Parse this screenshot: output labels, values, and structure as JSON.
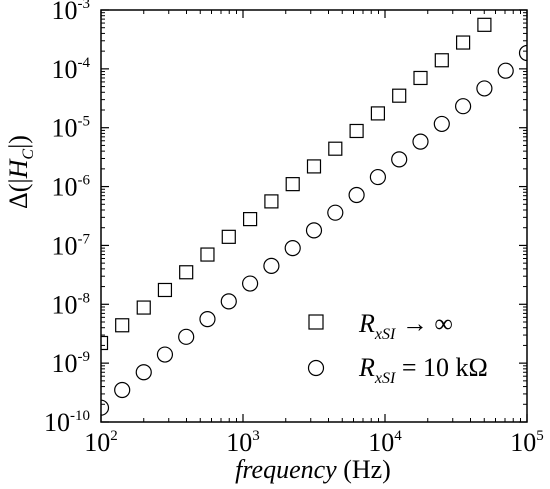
{
  "chart_data": {
    "type": "scatter",
    "title": "",
    "xscale": "log",
    "yscale": "log",
    "xlim": [
      100,
      100000
    ],
    "ylim": [
      1e-10,
      0.001
    ],
    "grid": false,
    "legend_position": "bottom-right",
    "xlabel": {
      "italic": "frequency",
      "unit": "(Hz)"
    },
    "ylabel": {
      "prefix": "Δ(|",
      "symbol": "H",
      "subscript": "C",
      "suffix": "|)"
    },
    "x_ticks": [
      {
        "value": 100,
        "base": "10",
        "exp": "2"
      },
      {
        "value": 1000,
        "base": "10",
        "exp": "3"
      },
      {
        "value": 10000,
        "base": "10",
        "exp": "4"
      },
      {
        "value": 100000,
        "base": "10",
        "exp": "5"
      }
    ],
    "y_ticks": [
      {
        "value": 1e-10,
        "base": "10",
        "exp": "-10"
      },
      {
        "value": 1e-09,
        "base": "10",
        "exp": "-9"
      },
      {
        "value": 1e-08,
        "base": "10",
        "exp": "-8"
      },
      {
        "value": 1e-07,
        "base": "10",
        "exp": "-7"
      },
      {
        "value": 1e-06,
        "base": "10",
        "exp": "-6"
      },
      {
        "value": 1e-05,
        "base": "10",
        "exp": "-5"
      },
      {
        "value": 0.0001,
        "base": "10",
        "exp": "-4"
      },
      {
        "value": 0.001,
        "base": "10",
        "exp": "-3"
      }
    ],
    "series": [
      {
        "name": "R_xSI → ∞",
        "label": {
          "symbol": "R",
          "subscript": "xSI",
          "rest": "→ ∞"
        },
        "marker": "square",
        "x": [
          100,
          141,
          200,
          282,
          398,
          562,
          794,
          1122,
          1585,
          2239,
          3162,
          4467,
          6310,
          8913,
          12589,
          17783,
          25119,
          35481,
          50119
        ],
        "y": [
          2.2e-09,
          4.4e-09,
          8.8e-09,
          1.75e-08,
          3.5e-08,
          7e-08,
          1.4e-07,
          2.8e-07,
          5.6e-07,
          1.1e-06,
          2.2e-06,
          4.4e-06,
          8.8e-06,
          1.75e-05,
          3.5e-05,
          7e-05,
          0.00014,
          0.00028,
          0.00056
        ]
      },
      {
        "name": "R_xSI = 10 kΩ",
        "label": {
          "symbol": "R",
          "subscript": "xSI",
          "rest": "= 10 kΩ"
        },
        "marker": "circle",
        "x": [
          100,
          141,
          200,
          282,
          398,
          562,
          794,
          1122,
          1585,
          2239,
          3162,
          4467,
          6310,
          8913,
          12589,
          17783,
          25119,
          35481,
          50119,
          70795,
          100000
        ],
        "y": [
          1.75e-10,
          3.5e-10,
          7e-10,
          1.4e-09,
          2.8e-09,
          5.6e-09,
          1.12e-08,
          2.25e-08,
          4.5e-08,
          9e-08,
          1.8e-07,
          3.6e-07,
          7.2e-07,
          1.45e-06,
          2.9e-06,
          5.8e-06,
          1.16e-05,
          2.32e-05,
          4.65e-05,
          9.3e-05,
          0.000186
        ]
      }
    ]
  }
}
